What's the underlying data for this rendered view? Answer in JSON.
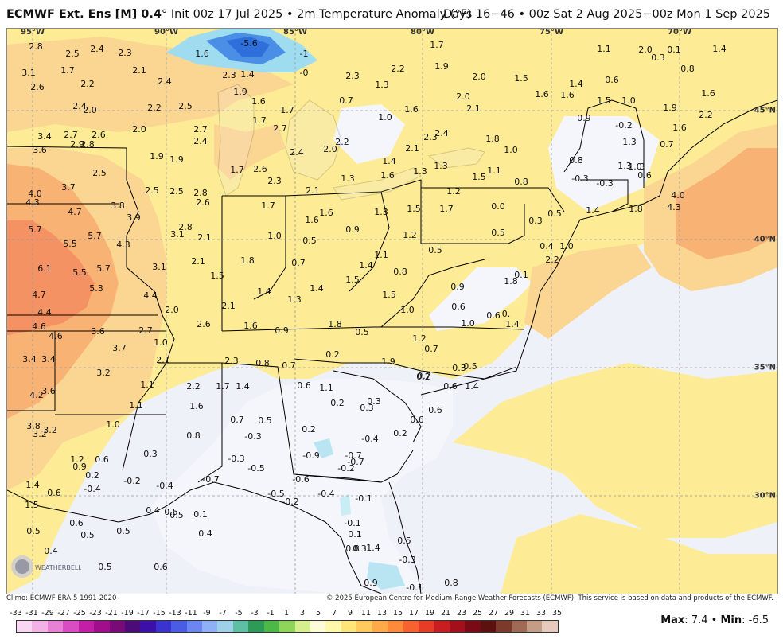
{
  "header": {
    "model": "ECMWF Ext. Ens [M] 0.4",
    "init": "Init 00z 17 Jul 2025",
    "variable": "2m Temperature Anomaly (°F)",
    "valid": "Days 16−46 • 00z Sat 2 Aug 2025−00z Mon 1 Sep 2025",
    "bullet": "•",
    "degree_sign": "°"
  },
  "map": {
    "lon_labels": [
      {
        "text": "95°W",
        "x": 32
      },
      {
        "text": "90°W",
        "x": 200
      },
      {
        "text": "85°W",
        "x": 362
      },
      {
        "text": "80°W",
        "x": 522
      },
      {
        "text": "75°W",
        "x": 684
      },
      {
        "text": "70°W",
        "x": 845
      }
    ],
    "lat_labels": [
      {
        "text": "45°N",
        "y": 103
      },
      {
        "text": "40°N",
        "y": 265
      },
      {
        "text": "35°N",
        "y": 426
      },
      {
        "text": "30°N",
        "y": 587
      }
    ],
    "anomaly_values": [
      [
        "2.8",
        36,
        23
      ],
      [
        "2.5",
        82,
        32
      ],
      [
        "2.4",
        113,
        26
      ],
      [
        "2.3",
        148,
        31
      ],
      [
        "1.6",
        245,
        32
      ],
      [
        "-5.6",
        304,
        19
      ],
      [
        "-1",
        373,
        32
      ],
      [
        "1.7",
        540,
        21
      ],
      [
        "1.1",
        750,
        26
      ],
      [
        "2.0",
        802,
        27
      ],
      [
        "0.3",
        818,
        37
      ],
      [
        "0.1",
        838,
        27
      ],
      [
        "1.4",
        895,
        26
      ],
      [
        "3.1",
        27,
        56
      ],
      [
        "1.7",
        76,
        53
      ],
      [
        "2.1",
        166,
        53
      ],
      [
        "2.3",
        279,
        59
      ],
      [
        "1.4",
        302,
        58
      ],
      [
        "-0",
        373,
        56
      ],
      [
        "2.3",
        434,
        60
      ],
      [
        "1.9",
        546,
        48
      ],
      [
        "2.2",
        491,
        51
      ],
      [
        "2.0",
        593,
        61
      ],
      [
        "1.5",
        646,
        63
      ],
      [
        "1.4",
        715,
        70
      ],
      [
        "0.6",
        760,
        65
      ],
      [
        "0.8",
        855,
        51
      ],
      [
        "2.6",
        38,
        74
      ],
      [
        "2.2",
        101,
        70
      ],
      [
        "2.4",
        198,
        67
      ],
      [
        "1.9",
        293,
        80
      ],
      [
        "1.3",
        471,
        71
      ],
      [
        "1.6",
        316,
        92
      ],
      [
        "0.7",
        426,
        91
      ],
      [
        "1.6",
        508,
        102
      ],
      [
        "2.0",
        573,
        86
      ],
      [
        "2.1",
        586,
        101
      ],
      [
        "1.6",
        672,
        83
      ],
      [
        "1.6",
        704,
        84
      ],
      [
        "1.5",
        750,
        91
      ],
      [
        "1.0",
        781,
        91
      ],
      [
        "1.9",
        833,
        100
      ],
      [
        "1.6",
        881,
        82
      ],
      [
        "2.4",
        91,
        98
      ],
      [
        "2.0",
        104,
        103
      ],
      [
        "2.2",
        185,
        100
      ],
      [
        "2.5",
        224,
        98
      ],
      [
        "1.7",
        317,
        116
      ],
      [
        "1.7",
        352,
        103
      ],
      [
        "1.0",
        475,
        112
      ],
      [
        "0.9",
        725,
        113
      ],
      [
        "-0.2",
        775,
        122
      ],
      [
        "2.2",
        878,
        109
      ],
      [
        "1.6",
        845,
        125
      ],
      [
        "2.0",
        166,
        127
      ],
      [
        "2.7",
        243,
        127
      ],
      [
        "2.7",
        343,
        126
      ],
      [
        "2.3",
        532,
        137
      ],
      [
        "2.4",
        546,
        132
      ],
      [
        "1.8",
        610,
        139
      ],
      [
        "1.0",
        633,
        153
      ],
      [
        "1.3",
        782,
        143
      ],
      [
        "0.7",
        829,
        146
      ],
      [
        "3.4",
        47,
        136
      ],
      [
        "2.7",
        80,
        134
      ],
      [
        "2.6",
        115,
        134
      ],
      [
        "2.9",
        88,
        146
      ],
      [
        "2.8",
        101,
        146
      ],
      [
        "2.4",
        243,
        142
      ],
      [
        "2.2",
        421,
        143
      ],
      [
        "2.0",
        406,
        152
      ],
      [
        "2.1",
        509,
        151
      ],
      [
        "3.6",
        41,
        153
      ],
      [
        "1.9",
        188,
        161
      ],
      [
        "1.9",
        213,
        165
      ],
      [
        "2.4",
        364,
        156
      ],
      [
        "1.4",
        480,
        167
      ],
      [
        "0.8",
        715,
        166
      ],
      [
        "2.5",
        116,
        182
      ],
      [
        "1.7",
        289,
        178
      ],
      [
        "2.6",
        318,
        177
      ],
      [
        "1.6",
        478,
        185
      ],
      [
        "1.3",
        519,
        180
      ],
      [
        "1.3",
        545,
        173
      ],
      [
        "1.5",
        593,
        187
      ],
      [
        "1.1",
        612,
        179
      ],
      [
        "0.8",
        646,
        193
      ],
      [
        "-0.3",
        720,
        189
      ],
      [
        "1.3",
        776,
        173
      ],
      [
        "3",
        798,
        174
      ],
      [
        "1.0",
        789,
        174
      ],
      [
        "-0.3",
        751,
        195
      ],
      [
        "0.6",
        801,
        185
      ],
      [
        "4.0",
        35,
        208
      ],
      [
        "3.7",
        77,
        200
      ],
      [
        "2.5",
        182,
        204
      ],
      [
        "2.5",
        213,
        205
      ],
      [
        "2.8",
        243,
        207
      ],
      [
        "2.3",
        336,
        192
      ],
      [
        "2.1",
        384,
        204
      ],
      [
        "1.3",
        428,
        189
      ],
      [
        "1.2",
        561,
        205
      ],
      [
        "4.0",
        843,
        210
      ],
      [
        "4.3",
        32,
        219
      ],
      [
        "2.6",
        246,
        219
      ],
      [
        "1.7",
        328,
        223
      ],
      [
        "1.6",
        401,
        232
      ],
      [
        "1.3",
        470,
        231
      ],
      [
        "1.5",
        511,
        227
      ],
      [
        "1.7",
        552,
        227
      ],
      [
        "0.0",
        617,
        224
      ],
      [
        "0.5",
        688,
        233
      ],
      [
        "1.4",
        736,
        229
      ],
      [
        "1.8",
        790,
        227
      ],
      [
        "4.3",
        838,
        225
      ],
      [
        "4.7",
        85,
        231
      ],
      [
        "3.8",
        139,
        223
      ],
      [
        "3.9",
        159,
        238
      ],
      [
        "1.6",
        383,
        241
      ],
      [
        "0.3",
        664,
        242
      ],
      [
        "5.7",
        35,
        253
      ],
      [
        "5.5",
        79,
        271
      ],
      [
        "5.7",
        110,
        261
      ],
      [
        "4.3",
        146,
        272
      ],
      [
        "3.1",
        214,
        259
      ],
      [
        "2.8",
        224,
        250
      ],
      [
        "2.1",
        248,
        263
      ],
      [
        "1.0",
        336,
        261
      ],
      [
        "0.5",
        380,
        267
      ],
      [
        "0.9",
        434,
        253
      ],
      [
        "1.2",
        506,
        260
      ],
      [
        "0.5",
        617,
        257
      ],
      [
        "0.5",
        538,
        279
      ],
      [
        "0.4",
        678,
        274
      ],
      [
        "1.0",
        703,
        274
      ],
      [
        "1.1",
        470,
        285
      ],
      [
        "2.2",
        685,
        291
      ],
      [
        "6.1",
        47,
        302
      ],
      [
        "5.5",
        91,
        307
      ],
      [
        "5.7",
        121,
        302
      ],
      [
        "3.1",
        191,
        300
      ],
      [
        "2.1",
        240,
        293
      ],
      [
        "1.8",
        302,
        292
      ],
      [
        "0.7",
        366,
        295
      ],
      [
        "1.4",
        451,
        298
      ],
      [
        "0.8",
        494,
        306
      ],
      [
        "1.5",
        264,
        311
      ],
      [
        "0.1",
        646,
        310
      ],
      [
        "1.8",
        633,
        318
      ],
      [
        "5.3",
        112,
        327
      ],
      [
        "4.4",
        180,
        336
      ],
      [
        "1.4",
        323,
        331
      ],
      [
        "1.3",
        361,
        341
      ],
      [
        "1.4",
        389,
        327
      ],
      [
        "1.5",
        434,
        316
      ],
      [
        "1.5",
        480,
        335
      ],
      [
        "0.9",
        566,
        325
      ],
      [
        "4.7",
        40,
        335
      ],
      [
        "4.4",
        47,
        357
      ],
      [
        "2.0",
        207,
        354
      ],
      [
        "2.1",
        278,
        349
      ],
      [
        "1.0",
        503,
        354
      ],
      [
        "0.6",
        567,
        350
      ],
      [
        "0.6",
        611,
        361
      ],
      [
        "0.",
        627,
        359
      ],
      [
        "4.6",
        40,
        375
      ],
      [
        "3.6",
        114,
        381
      ],
      [
        "2.7",
        174,
        380
      ],
      [
        "2.6",
        247,
        372
      ],
      [
        "1.6",
        306,
        374
      ],
      [
        "0.9",
        345,
        380
      ],
      [
        "1.8",
        412,
        372
      ],
      [
        "0.5",
        446,
        382
      ],
      [
        "1.0",
        579,
        371
      ],
      [
        "1.4",
        635,
        372
      ],
      [
        "4.6",
        61,
        387
      ],
      [
        "3.7",
        141,
        402
      ],
      [
        "1.0",
        193,
        395
      ],
      [
        "1.2",
        518,
        390
      ],
      [
        "0.7",
        533,
        403
      ],
      [
        "0.2",
        409,
        410
      ],
      [
        "3.4",
        28,
        416
      ],
      [
        "3.4",
        52,
        416
      ],
      [
        "2.1",
        196,
        417
      ],
      [
        "2.3",
        282,
        418
      ],
      [
        "0.8",
        321,
        421
      ],
      [
        "0.7",
        354,
        424
      ],
      [
        "1.9",
        479,
        419
      ],
      [
        "0.3",
        568,
        427
      ],
      [
        "0.5",
        582,
        425
      ],
      [
        "0.7",
        524,
        437
      ],
      [
        "3.2",
        121,
        433
      ],
      [
        "1.1",
        176,
        448
      ],
      [
        "2.2",
        234,
        450
      ],
      [
        "1.7",
        271,
        450
      ],
      [
        "1.4",
        296,
        450
      ],
      [
        "0.6",
        373,
        449
      ],
      [
        "1.1",
        401,
        452
      ],
      [
        "0.2",
        523,
        438
      ],
      [
        "0.6",
        557,
        450
      ],
      [
        "1.4",
        584,
        450
      ],
      [
        "4.2",
        37,
        461
      ],
      [
        "3.6",
        52,
        456
      ],
      [
        "1.1",
        162,
        474
      ],
      [
        "1.6",
        238,
        475
      ],
      [
        "0.2",
        415,
        471
      ],
      [
        "0.3",
        461,
        469
      ],
      [
        "0.3",
        452,
        477
      ],
      [
        "0.6",
        538,
        480
      ],
      [
        "1.0",
        133,
        498
      ],
      [
        "0.7",
        289,
        492
      ],
      [
        "0.5",
        324,
        493
      ],
      [
        "0.2",
        379,
        504
      ],
      [
        "0.6",
        515,
        492
      ],
      [
        "3.8",
        33,
        500
      ],
      [
        "3.2",
        41,
        510
      ],
      [
        "3.2",
        54,
        505
      ],
      [
        "0.8",
        234,
        512
      ],
      [
        "-0.3",
        309,
        513
      ],
      [
        "-0.4",
        456,
        516
      ],
      [
        "0.2",
        494,
        509
      ],
      [
        "0.3",
        180,
        535
      ],
      [
        "-0.3",
        288,
        541
      ],
      [
        "-0.9",
        382,
        537
      ],
      [
        "-0.7",
        435,
        537
      ],
      [
        "-0.7",
        438,
        545
      ],
      [
        "1.2",
        88,
        542
      ],
      [
        "0.6",
        119,
        542
      ],
      [
        "0.9",
        91,
        551
      ],
      [
        "-0.5",
        313,
        553
      ],
      [
        "-0.2",
        426,
        553
      ],
      [
        "0.2",
        107,
        562
      ],
      [
        "-0.4",
        107,
        579
      ],
      [
        "-0.2",
        157,
        569
      ],
      [
        "-0.7",
        256,
        567
      ],
      [
        "-0.6",
        369,
        567
      ],
      [
        "-0.4",
        198,
        575
      ],
      [
        "1.4",
        32,
        574
      ],
      [
        "-0.5",
        338,
        585
      ],
      [
        "-0.2",
        356,
        595
      ],
      [
        "-0.4",
        401,
        585
      ],
      [
        "-0.1",
        448,
        591
      ],
      [
        "0.6",
        59,
        584
      ],
      [
        "1.5",
        31,
        599
      ],
      [
        "0.4",
        183,
        606
      ],
      [
        "0.5",
        206,
        608
      ],
      [
        "0.5",
        213,
        612
      ],
      [
        "0.1",
        243,
        611
      ],
      [
        "-0.1",
        434,
        622
      ],
      [
        "0.1",
        437,
        636
      ],
      [
        "0.5",
        33,
        632
      ],
      [
        "0.6",
        87,
        622
      ],
      [
        "0.5",
        101,
        637
      ],
      [
        "0.5",
        146,
        632
      ],
      [
        "0.4",
        249,
        635
      ],
      [
        "0.5",
        499,
        644
      ],
      [
        "0.8",
        434,
        654
      ],
      [
        "0.3",
        443,
        654
      ],
      [
        "-1.4",
        458,
        653
      ],
      [
        "-0.3",
        503,
        668
      ],
      [
        "0.4",
        55,
        657
      ],
      [
        "0.5",
        123,
        677
      ],
      [
        "0.6",
        193,
        677
      ],
      [
        "0.9",
        457,
        697
      ],
      [
        "-0.1",
        512,
        703
      ],
      [
        "0.8",
        558,
        697
      ]
    ]
  },
  "footer": {
    "climo": "Climo: ECMWF ERA-5 1991-2020",
    "copyright": "© 2025 European Centre for Medium-Range Weather Forecasts (ECMWF). This service is based on data and products of the ECMWF."
  },
  "logo": {
    "text": "WEATHERBELL"
  },
  "legend": {
    "ticks": [
      "-33",
      "-31",
      "-29",
      "-27",
      "-25",
      "-23",
      "-21",
      "-19",
      "-17",
      "-15",
      "-13",
      "-11",
      "-9",
      "-7",
      "-5",
      "-3",
      "-1",
      "1",
      "3",
      "5",
      "7",
      "9",
      "11",
      "13",
      "15",
      "17",
      "19",
      "21",
      "23",
      "25",
      "27",
      "29",
      "31",
      "33",
      "35"
    ],
    "colors": [
      "#f9d7f2",
      "#f2b2e6",
      "#e880d6",
      "#d94cc4",
      "#c31ea8",
      "#a10d8c",
      "#7b0a79",
      "#4d0b7a",
      "#3b0fa8",
      "#3a33cf",
      "#4b5ce4",
      "#6a86f0",
      "#8fb0f7",
      "#9dd1ea",
      "#5fbfa5",
      "#2e9a57",
      "#4cb848",
      "#8ed65a",
      "#d6ee8e",
      "#fefcd8",
      "#fff7a9",
      "#ffe47a",
      "#ffc95c",
      "#ffaa48",
      "#ff8a3a",
      "#f8622f",
      "#e73d27",
      "#c91e1f",
      "#a50f1b",
      "#7a0b16",
      "#5c1110",
      "#7b3a2a",
      "#a06a54",
      "#c59c86",
      "#e6cbbd"
    ],
    "max_label": "Max",
    "max_value": "7.4",
    "min_label": "Min",
    "min_value": "-6.5"
  },
  "map_colors": {
    "ocean_neutral": "#eef1f8",
    "near_zero": "#fdf6c4",
    "weak_warm": "#fde98e",
    "moderate_warm": "#fbd088",
    "strong_warm": "#f7ab6f",
    "very_strong": "#f28b57",
    "cold_core": "#2f6fdc",
    "light_cold": "#9fdcef"
  }
}
